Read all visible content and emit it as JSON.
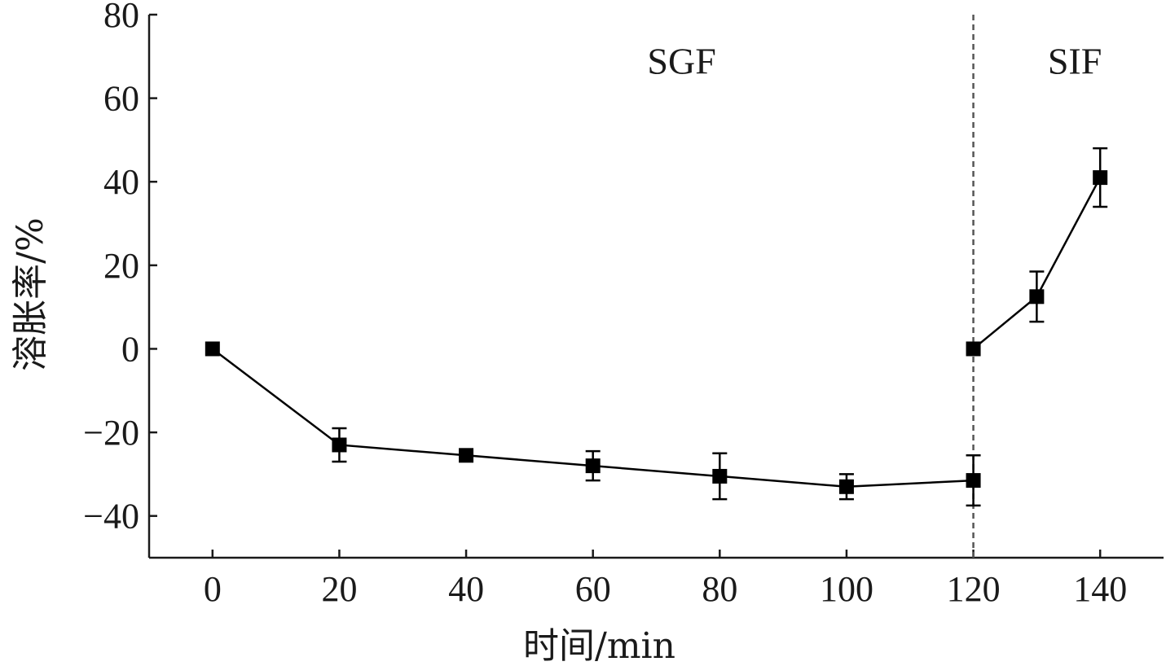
{
  "chart_data": {
    "type": "line",
    "xlabel": "时间/min",
    "ylabel": "溶胀率/%",
    "xlim": [
      -10,
      150
    ],
    "ylim": [
      -50,
      80
    ],
    "x_ticks": [
      0,
      20,
      40,
      60,
      80,
      100,
      120,
      140
    ],
    "y_ticks": [
      80,
      60,
      40,
      20,
      0,
      -20,
      -40
    ],
    "y_tick_labels": [
      "80",
      "60",
      "40",
      "20",
      "0",
      "−20",
      "−40"
    ],
    "grid": false,
    "divider": {
      "x": 120,
      "style": "dashed"
    },
    "regions": [
      {
        "label": "SGF",
        "x": 74,
        "y": 69
      },
      {
        "label": "SIF",
        "x": 136,
        "y": 69
      }
    ],
    "series": [
      {
        "segment": "SGF",
        "points": [
          {
            "x": 0,
            "y": 0,
            "err": 0
          },
          {
            "x": 20,
            "y": -23,
            "err": 4
          },
          {
            "x": 40,
            "y": -25.5,
            "err": 0
          },
          {
            "x": 60,
            "y": -28,
            "err": 3.5
          },
          {
            "x": 80,
            "y": -30.5,
            "err": 5.5
          },
          {
            "x": 100,
            "y": -33,
            "err": 3
          },
          {
            "x": 120,
            "y": -31.5,
            "err": 6
          }
        ]
      },
      {
        "segment": "SIF",
        "points": [
          {
            "x": 120,
            "y": 0,
            "err": 0
          },
          {
            "x": 130,
            "y": 12.5,
            "err": 6
          },
          {
            "x": 140,
            "y": 41,
            "err": 7
          }
        ]
      }
    ],
    "colors": {
      "line": "#000000",
      "marker": "#000000",
      "divider": "#555555"
    }
  }
}
